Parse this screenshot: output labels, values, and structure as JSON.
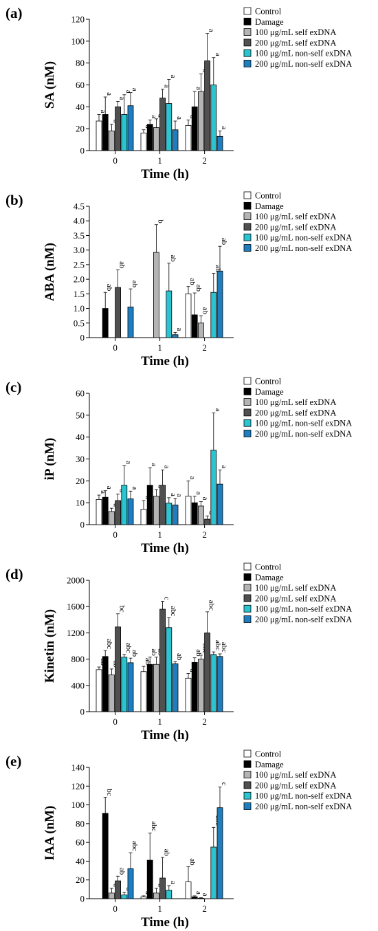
{
  "legend": {
    "entries": [
      {
        "label": "Control",
        "color": "#ffffff"
      },
      {
        "label": "Damage",
        "color": "#000000"
      },
      {
        "label": "100 μg/mL self exDNA",
        "color": "#b4b4b4"
      },
      {
        "label": "200 μg/mL self exDNA",
        "color": "#505050"
      },
      {
        "label": "100 μg/mL non-self exDNA",
        "color": "#2bc4d0"
      },
      {
        "label": "200 μg/mL non-self  exDNA",
        "color": "#1e7ec0"
      }
    ]
  },
  "chart_data": [
    {
      "type": "bar",
      "panel_label": "(a)",
      "title": "",
      "xlabel": "Time (h)",
      "ylabel": "SA (nM)",
      "categories": [
        "0",
        "1",
        "2"
      ],
      "ylim": [
        0,
        120
      ],
      "yticks": [
        0,
        20,
        40,
        60,
        80,
        100,
        120
      ],
      "legend_position": "right",
      "series": [
        {
          "name": "Control",
          "values": [
            27,
            16,
            23
          ],
          "errors": [
            6,
            3,
            5
          ],
          "labels": [
            "a",
            "a",
            "a"
          ]
        },
        {
          "name": "Damage",
          "values": [
            33,
            24,
            40
          ],
          "errors": [
            16,
            4,
            14
          ],
          "labels": [
            "a",
            "a",
            "a"
          ]
        },
        {
          "name": "100 μg/mL self exDNA",
          "values": [
            18,
            21,
            54
          ],
          "errors": [
            6,
            8,
            16
          ],
          "labels": [
            "a",
            "a",
            "a"
          ]
        },
        {
          "name": "200 μg/mL self exDNA",
          "values": [
            40,
            48,
            82
          ],
          "errors": [
            5,
            8,
            25
          ],
          "labels": [
            "a",
            "a",
            "a"
          ]
        },
        {
          "name": "100 μg/mL non-self exDNA",
          "values": [
            33,
            43,
            60
          ],
          "errors": [
            18,
            22,
            25
          ],
          "labels": [
            "a",
            "a",
            "a"
          ]
        },
        {
          "name": "200 μg/mL non-self  exDNA",
          "values": [
            41,
            19,
            13
          ],
          "errors": [
            12,
            8,
            5
          ],
          "labels": [
            "a",
            "a",
            "a"
          ]
        }
      ]
    },
    {
      "type": "bar",
      "panel_label": "(b)",
      "title": "",
      "xlabel": "Time (h)",
      "ylabel": "ABA (nM)",
      "categories": [
        "0",
        "1",
        "2"
      ],
      "ylim": [
        0,
        4.5
      ],
      "yticks": [
        0,
        0.5,
        1.0,
        1.5,
        2.0,
        2.5,
        3.0,
        3.5,
        4.0,
        4.5
      ],
      "ytick_labels": [
        "0",
        "0.5",
        "1.0",
        "1.5",
        "2.0",
        "2.5",
        "3.0",
        "3.5",
        "4.0",
        "4.5"
      ],
      "legend_position": "right",
      "series": [
        {
          "name": "Control",
          "values": [
            0,
            0,
            1.5
          ],
          "errors": [
            0,
            0,
            0.25
          ],
          "labels": [
            "",
            "",
            "ab"
          ]
        },
        {
          "name": "Damage",
          "values": [
            1.0,
            0,
            0.78
          ],
          "errors": [
            0.55,
            0,
            0.75
          ],
          "labels": [
            "ab",
            "",
            "ab"
          ]
        },
        {
          "name": "100 μg/mL self exDNA",
          "values": [
            0,
            2.92,
            0.5
          ],
          "errors": [
            0,
            0.95,
            0.25
          ],
          "labels": [
            "",
            "b",
            "ab"
          ]
        },
        {
          "name": "200 μg/mL self exDNA",
          "values": [
            1.72,
            0,
            0
          ],
          "errors": [
            0.6,
            0,
            0
          ],
          "labels": [
            "ab",
            "",
            ""
          ]
        },
        {
          "name": "100 μg/mL non-self exDNA",
          "values": [
            0,
            1.6,
            1.55
          ],
          "errors": [
            0,
            0.95,
            0.65
          ],
          "labels": [
            "",
            "ab",
            "ab"
          ]
        },
        {
          "name": "200 μg/mL non-self  exDNA",
          "values": [
            1.05,
            0.1,
            2.28
          ],
          "errors": [
            0.62,
            0.08,
            0.85
          ],
          "labels": [
            "ab",
            "a",
            "ab"
          ]
        }
      ]
    },
    {
      "type": "bar",
      "panel_label": "(c)",
      "title": "",
      "xlabel": "Time (h)",
      "ylabel": "iP (nM)",
      "categories": [
        "0",
        "1",
        "2"
      ],
      "ylim": [
        0,
        60
      ],
      "yticks": [
        0,
        10,
        20,
        30,
        40,
        50,
        60
      ],
      "legend_position": "right",
      "series": [
        {
          "name": "Control",
          "values": [
            11.5,
            7,
            13
          ],
          "errors": [
            2,
            4,
            7
          ],
          "labels": [
            "a",
            "a",
            "a"
          ]
        },
        {
          "name": "Damage",
          "values": [
            12.5,
            18,
            10
          ],
          "errors": [
            3,
            8,
            3
          ],
          "labels": [
            "a",
            "a",
            "a"
          ]
        },
        {
          "name": "100 μg/mL self exDNA",
          "values": [
            6,
            13,
            8.5
          ],
          "errors": [
            1.5,
            3,
            2
          ],
          "labels": [
            "a",
            "a",
            "a"
          ]
        },
        {
          "name": "200 μg/mL self exDNA",
          "values": [
            11,
            18,
            2.5
          ],
          "errors": [
            3,
            7,
            1.5
          ],
          "labels": [
            "a",
            "a",
            "a"
          ]
        },
        {
          "name": "100 μg/mL non-self exDNA",
          "values": [
            18,
            9.8,
            34
          ],
          "errors": [
            9,
            2.5,
            17
          ],
          "labels": [
            "a",
            "a",
            "a"
          ]
        },
        {
          "name": "200 μg/mL non-self  exDNA",
          "values": [
            11.8,
            9,
            18.5
          ],
          "errors": [
            3.5,
            3,
            6.5
          ],
          "labels": [
            "a",
            "a",
            "a"
          ]
        }
      ]
    },
    {
      "type": "bar",
      "panel_label": "(d)",
      "title": "",
      "xlabel": "Time (h)",
      "ylabel": "Kinetin (nM)",
      "categories": [
        "0",
        "1",
        "2"
      ],
      "ylim": [
        0,
        2000
      ],
      "yticks": [
        0,
        400,
        800,
        1200,
        1600,
        2000
      ],
      "legend_position": "right",
      "series": [
        {
          "name": "Control",
          "values": [
            640,
            610,
            510
          ],
          "errors": [
            40,
            80,
            70
          ],
          "labels": [
            "ab",
            "ab",
            "a"
          ]
        },
        {
          "name": "Damage",
          "values": [
            840,
            720,
            750
          ],
          "errors": [
            90,
            110,
            70
          ],
          "labels": [
            "abc",
            "ab",
            "ab"
          ]
        },
        {
          "name": "100 μg/mL self exDNA",
          "values": [
            560,
            720,
            800
          ],
          "errors": [
            90,
            110,
            60
          ],
          "labels": [
            "ab",
            "ab",
            "abc"
          ]
        },
        {
          "name": "200 μg/mL self exDNA",
          "values": [
            1290,
            1560,
            1200
          ],
          "errors": [
            200,
            120,
            320
          ],
          "labels": [
            "bc",
            "c",
            "abc"
          ]
        },
        {
          "name": "100 μg/mL non-self exDNA",
          "values": [
            830,
            1280,
            870
          ],
          "errors": [
            40,
            150,
            40
          ],
          "labels": [
            "abc",
            "abc",
            "abc"
          ]
        },
        {
          "name": "200 μg/mL non-self  exDNA",
          "values": [
            745,
            730,
            840
          ],
          "errors": [
            70,
            30,
            40
          ],
          "labels": [
            "ab",
            "ab",
            "abc"
          ]
        }
      ]
    },
    {
      "type": "bar",
      "panel_label": "(e)",
      "title": "",
      "xlabel": "Time (h)",
      "ylabel": "IAA (nM)",
      "categories": [
        "0",
        "1",
        "2"
      ],
      "ylim": [
        0,
        140
      ],
      "yticks": [
        0,
        20,
        40,
        60,
        80,
        100,
        120,
        140
      ],
      "legend_position": "right",
      "series": [
        {
          "name": "Control",
          "values": [
            0,
            2,
            18
          ],
          "errors": [
            0,
            1,
            16
          ],
          "labels": [
            "",
            "a",
            "ab"
          ]
        },
        {
          "name": "Damage",
          "values": [
            91,
            41,
            2
          ],
          "errors": [
            17,
            29,
            1
          ],
          "labels": [
            "bc",
            "abc",
            "a"
          ]
        },
        {
          "name": "100 μg/mL self exDNA",
          "values": [
            6,
            6,
            0.5
          ],
          "errors": [
            5,
            5,
            0.5
          ],
          "labels": [
            "a",
            "a",
            "a"
          ]
        },
        {
          "name": "200 μg/mL self exDNA",
          "values": [
            19,
            22,
            0
          ],
          "errors": [
            5,
            22,
            0
          ],
          "labels": [
            "ab",
            "ab",
            ""
          ]
        },
        {
          "name": "100 μg/mL non-self exDNA",
          "values": [
            4,
            9,
            55
          ],
          "errors": [
            3,
            5,
            21
          ],
          "labels": [
            "a",
            "a",
            "abc"
          ]
        },
        {
          "name": "200 μg/mL non-self  exDNA",
          "values": [
            32,
            0,
            97
          ],
          "errors": [
            17,
            0,
            22
          ],
          "labels": [
            "abc",
            "",
            "c"
          ]
        }
      ]
    }
  ]
}
